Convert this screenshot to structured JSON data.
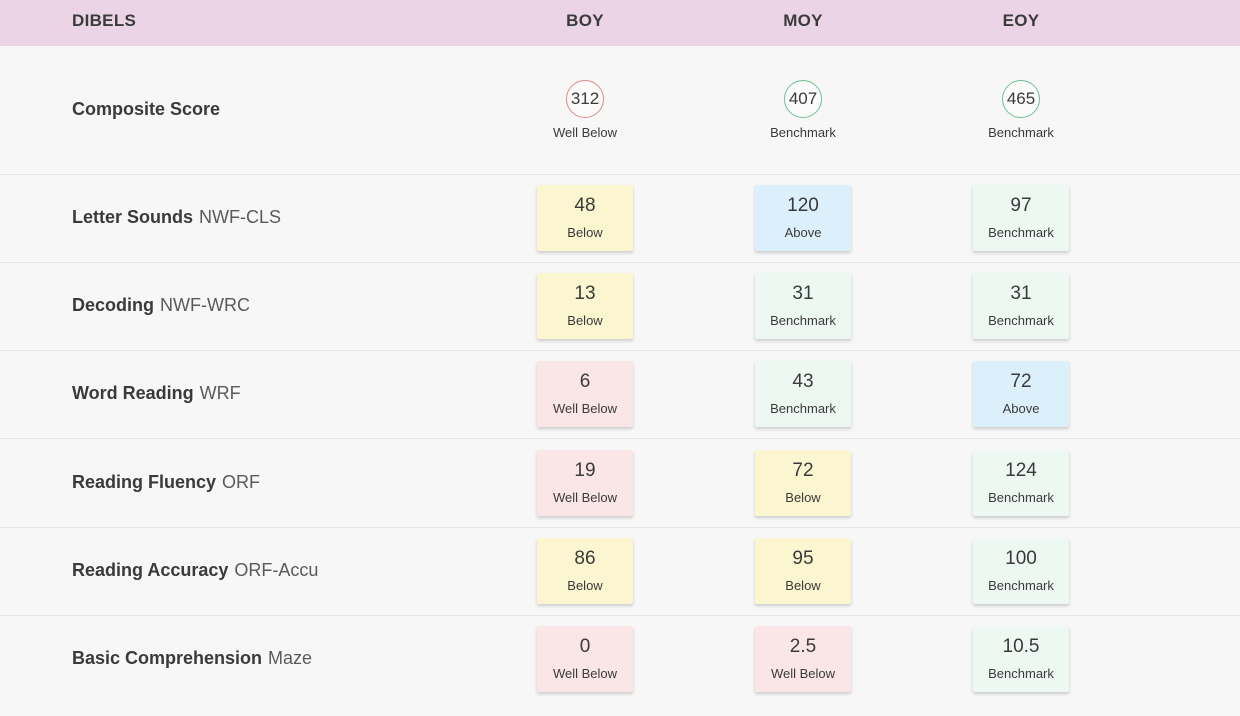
{
  "header": {
    "title": "DIBELS",
    "columns": [
      "BOY",
      "MOY",
      "EOY"
    ]
  },
  "composite": {
    "label": "Composite Score",
    "cells": [
      {
        "value": "312",
        "status": "Well Below",
        "ring_color": "#e08a8a"
      },
      {
        "value": "407",
        "status": "Benchmark",
        "ring_color": "#6fbf96"
      },
      {
        "value": "465",
        "status": "Benchmark",
        "ring_color": "#6fbf96"
      }
    ]
  },
  "status_colors": {
    "Below": "#fbf6cf",
    "Well Below": "#fbe6e7",
    "Benchmark": "#eef8f3",
    "Above": "#dcf0fb"
  },
  "rows": [
    {
      "name": "Letter Sounds",
      "code": "NWF-CLS",
      "cells": [
        {
          "value": "48",
          "status": "Below"
        },
        {
          "value": "120",
          "status": "Above"
        },
        {
          "value": "97",
          "status": "Benchmark"
        }
      ]
    },
    {
      "name": "Decoding",
      "code": "NWF-WRC",
      "cells": [
        {
          "value": "13",
          "status": "Below"
        },
        {
          "value": "31",
          "status": "Benchmark"
        },
        {
          "value": "31",
          "status": "Benchmark"
        }
      ]
    },
    {
      "name": "Word Reading",
      "code": "WRF",
      "cells": [
        {
          "value": "6",
          "status": "Well Below"
        },
        {
          "value": "43",
          "status": "Benchmark"
        },
        {
          "value": "72",
          "status": "Above"
        }
      ]
    },
    {
      "name": "Reading Fluency",
      "code": "ORF",
      "cells": [
        {
          "value": "19",
          "status": "Well Below"
        },
        {
          "value": "72",
          "status": "Below"
        },
        {
          "value": "124",
          "status": "Benchmark"
        }
      ]
    },
    {
      "name": "Reading Accuracy",
      "code": "ORF-Accu",
      "cells": [
        {
          "value": "86",
          "status": "Below"
        },
        {
          "value": "95",
          "status": "Below"
        },
        {
          "value": "100",
          "status": "Benchmark"
        }
      ]
    },
    {
      "name": "Basic Comprehension",
      "code": "Maze",
      "cells": [
        {
          "value": "0",
          "status": "Well Below"
        },
        {
          "value": "2.5",
          "status": "Well Below"
        },
        {
          "value": "10.5",
          "status": "Benchmark"
        }
      ]
    }
  ]
}
